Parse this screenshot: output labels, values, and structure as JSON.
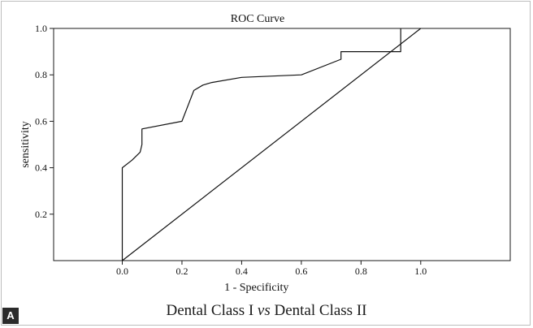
{
  "chart_data": {
    "type": "line",
    "title": "ROC Curve",
    "xlabel": "1 - Specificity",
    "ylabel": "sensitivity",
    "xlim": [
      -0.23,
      1.3
    ],
    "ylim": [
      0,
      1.0
    ],
    "x_ticks": [
      {
        "value": 0.0,
        "label": "0.0"
      },
      {
        "value": 0.2,
        "label": "0.2"
      },
      {
        "value": 0.4,
        "label": "0.4"
      },
      {
        "value": 0.6,
        "label": "0.6"
      },
      {
        "value": 0.8,
        "label": "0.8"
      },
      {
        "value": 1.0,
        "label": "1.0"
      }
    ],
    "y_ticks": [
      {
        "value": 0.2,
        "label": "0.2"
      },
      {
        "value": 0.4,
        "label": "0.4"
      },
      {
        "value": 0.6,
        "label": "0.6"
      },
      {
        "value": 0.8,
        "label": "0.8"
      },
      {
        "value": 1.0,
        "label": "1.0"
      }
    ],
    "grid": false,
    "series": [
      {
        "style": "roc",
        "x": [
          0.0,
          0.0,
          0.033,
          0.06,
          0.066,
          0.066,
          0.2,
          0.24,
          0.27,
          0.3,
          0.4,
          0.6,
          0.733,
          0.733,
          0.933,
          0.933,
          0.933
        ],
        "y": [
          0.0,
          0.4,
          0.433,
          0.467,
          0.5,
          0.567,
          0.6,
          0.733,
          0.756,
          0.767,
          0.789,
          0.8,
          0.867,
          0.9,
          0.9,
          0.967,
          1.0
        ]
      },
      {
        "style": "reference",
        "x": [
          0.0,
          1.0
        ],
        "y": [
          0.0,
          1.0
        ]
      }
    ]
  },
  "panel_label": "A",
  "caption": {
    "left": "Dental Class I",
    "mid": "vs",
    "right": "Dental Class II"
  }
}
